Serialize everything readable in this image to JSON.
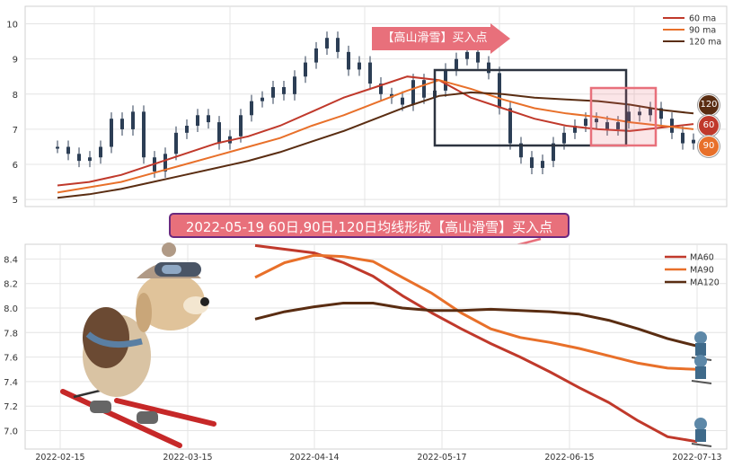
{
  "buy_label": "【高山滑雪】买入点",
  "banner_text": "2022-05-19 60日,90日,120日均线形成【高山滑雪】买入点",
  "badges": {
    "ma120": "120",
    "ma60": "60",
    "ma90": "90"
  },
  "colors": {
    "ma60": "#c0392b",
    "ma90": "#e8702a",
    "ma120": "#5a2d12",
    "candle": "#2c3e55",
    "accent": "#e8707b",
    "box_dark": "#2d3440"
  },
  "illustration": {
    "main": "skiing-puppy",
    "markers": "small-skiing-figures"
  },
  "chart_data": [
    {
      "type": "line",
      "ylim": [
        4.8,
        10.5
      ],
      "yticks": [
        "5",
        "6",
        "7",
        "8",
        "9",
        "10"
      ],
      "legend": [
        "60 ma",
        "90 ma",
        "120 ma"
      ],
      "legend_position": "top-right",
      "series": [
        {
          "name": "60 ma",
          "values": [
            5.4,
            5.5,
            5.7,
            6.0,
            6.3,
            6.6,
            6.8,
            7.1,
            7.5,
            7.9,
            8.2,
            8.5,
            8.4,
            7.9,
            7.6,
            7.3,
            7.1,
            7.0,
            6.95,
            7.05,
            7.15
          ]
        },
        {
          "name": "90 ma",
          "values": [
            5.2,
            5.35,
            5.5,
            5.75,
            6.0,
            6.25,
            6.5,
            6.75,
            7.1,
            7.4,
            7.75,
            8.1,
            8.4,
            8.15,
            7.85,
            7.6,
            7.45,
            7.35,
            7.2,
            7.1,
            7.0
          ]
        },
        {
          "name": "120 ma",
          "values": [
            5.05,
            5.15,
            5.3,
            5.5,
            5.7,
            5.9,
            6.1,
            6.35,
            6.65,
            6.95,
            7.3,
            7.65,
            7.95,
            8.05,
            8.0,
            7.9,
            7.85,
            7.8,
            7.7,
            7.55,
            7.45
          ]
        }
      ],
      "candles_close": [
        6.5,
        6.3,
        6.1,
        6.2,
        6.5,
        7.3,
        7.0,
        7.5,
        6.2,
        5.8,
        6.3,
        6.9,
        7.1,
        7.4,
        7.2,
        6.6,
        6.8,
        7.4,
        7.8,
        7.9,
        8.2,
        8.0,
        8.5,
        8.9,
        9.3,
        9.6,
        9.2,
        8.7,
        8.9,
        8.3,
        8.0,
        7.9,
        7.7,
        8.4,
        7.9,
        8.1,
        8.7,
        9.0,
        9.2,
        8.9,
        8.6,
        7.6,
        6.6,
        6.2,
        5.9,
        6.1,
        6.6,
        6.9,
        7.1,
        7.3,
        7.2,
        7.0,
        7.2,
        7.5,
        7.4,
        7.6,
        7.3,
        6.9,
        6.6,
        6.7
      ]
    },
    {
      "type": "line",
      "ylim": [
        6.85,
        8.52
      ],
      "yticks": [
        "7.0",
        "7.2",
        "7.4",
        "7.6",
        "7.8",
        "8.0",
        "8.2",
        "8.4"
      ],
      "xticks": [
        "2022-02-15",
        "2022-03-15",
        "2022-04-14",
        "2022-05-17",
        "2022-06-15",
        "2022-07-13"
      ],
      "legend": [
        "MA60",
        "MA90",
        "MA120"
      ],
      "legend_position": "top-right",
      "series": [
        {
          "name": "MA60",
          "values": [
            8.51,
            8.48,
            8.45,
            8.37,
            8.26,
            8.1,
            7.96,
            7.83,
            7.71,
            7.6,
            7.48,
            7.35,
            7.23,
            7.08,
            6.95,
            6.91
          ]
        },
        {
          "name": "MA90",
          "values": [
            8.25,
            8.37,
            8.43,
            8.42,
            8.38,
            8.25,
            8.12,
            7.96,
            7.83,
            7.76,
            7.72,
            7.67,
            7.61,
            7.55,
            7.51,
            7.5
          ]
        },
        {
          "name": "MA120",
          "values": [
            7.91,
            7.97,
            8.01,
            8.04,
            8.04,
            8.0,
            7.98,
            7.98,
            7.99,
            7.98,
            7.97,
            7.95,
            7.9,
            7.83,
            7.75,
            7.69
          ]
        }
      ]
    }
  ]
}
